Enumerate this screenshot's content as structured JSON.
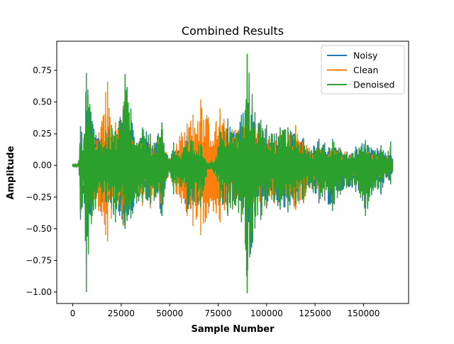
{
  "chart_data": {
    "type": "line",
    "title": "Combined Results",
    "xlabel": "Sample Number",
    "ylabel": "Amplitude",
    "xlim": [
      -8250,
      173250
    ],
    "ylim": [
      -1.09,
      0.98
    ],
    "xticks": [
      0,
      25000,
      50000,
      75000,
      100000,
      125000,
      150000
    ],
    "xtick_labels": [
      "0",
      "25000",
      "50000",
      "75000",
      "100000",
      "125000",
      "150000"
    ],
    "yticks": [
      -1.0,
      -0.75,
      -0.5,
      -0.25,
      0.0,
      0.25,
      0.5,
      0.75
    ],
    "ytick_labels": [
      "−1.00",
      "−0.75",
      "−0.50",
      "−0.25",
      "0.00",
      "0.25",
      "0.50",
      "0.75"
    ],
    "grid": false,
    "legend_position": "top-right",
    "series": [
      {
        "name": "Noisy",
        "color": "#1f77b4",
        "envelope_x": [
          0,
          3000,
          4000,
          6000,
          7000,
          10000,
          15000,
          17000,
          20000,
          22000,
          26000,
          27000,
          28000,
          30000,
          33000,
          36000,
          40000,
          42000,
          46000,
          47000,
          50000,
          52000,
          56000,
          59000,
          62000,
          66000,
          70000,
          74000,
          76000,
          80000,
          84000,
          87000,
          89000,
          90000,
          94000,
          97000,
          100000,
          104000,
          107000,
          111000,
          115000,
          119000,
          122000,
          127000,
          130000,
          134000,
          138000,
          144000,
          146000,
          151000,
          155000,
          159000,
          162000,
          164000,
          165000
        ],
        "envelope_top": [
          0.01,
          0.01,
          0.31,
          0.25,
          0.73,
          0.35,
          0.22,
          0.28,
          0.32,
          0.28,
          0.45,
          0.72,
          0.62,
          0.45,
          0.18,
          0.3,
          0.25,
          0.18,
          0.34,
          0.18,
          0.06,
          0.18,
          0.1,
          0.24,
          0.2,
          0.18,
          0.03,
          0.08,
          0.28,
          0.37,
          0.25,
          0.4,
          0.44,
          0.88,
          0.42,
          0.36,
          0.32,
          0.25,
          0.3,
          0.3,
          0.25,
          0.22,
          0.12,
          0.21,
          0.18,
          0.21,
          0.14,
          0.1,
          0.15,
          0.2,
          0.12,
          0.16,
          0.08,
          0.19,
          0.05
        ],
        "envelope_bottom": [
          -0.01,
          -0.01,
          -0.43,
          -0.3,
          -1.0,
          -0.4,
          -0.3,
          -0.3,
          -0.35,
          -0.45,
          -0.47,
          -0.5,
          -0.44,
          -0.42,
          -0.3,
          -0.3,
          -0.32,
          -0.28,
          -0.4,
          -0.25,
          -0.06,
          -0.23,
          -0.18,
          -0.38,
          -0.32,
          -0.34,
          -0.04,
          -0.1,
          -0.3,
          -0.4,
          -0.32,
          -0.45,
          -0.62,
          -1.0,
          -0.5,
          -0.43,
          -0.34,
          -0.3,
          -0.35,
          -0.37,
          -0.32,
          -0.3,
          -0.18,
          -0.3,
          -0.28,
          -0.36,
          -0.23,
          -0.17,
          -0.21,
          -0.4,
          -0.2,
          -0.23,
          -0.1,
          -0.15,
          -0.05
        ]
      },
      {
        "name": "Clean",
        "color": "#ff7f0e",
        "envelope_x": [
          0,
          3000,
          4000,
          6000,
          7000,
          10000,
          15000,
          17000,
          18000,
          20000,
          22000,
          26000,
          27000,
          28000,
          30000,
          33000,
          36000,
          40000,
          42000,
          46000,
          47000,
          50000,
          52000,
          56000,
          59000,
          62000,
          66000,
          70000,
          74000,
          76000,
          80000,
          84000,
          87000,
          89000,
          90000,
          94000,
          97000,
          100000,
          104000,
          107000,
          111000,
          115000,
          119000,
          122000,
          127000,
          130000,
          134000,
          138000,
          144000,
          146000,
          151000,
          155000,
          159000,
          162000,
          164000,
          165000
        ],
        "envelope_top": [
          0.01,
          0.01,
          0.1,
          0.15,
          0.2,
          0.25,
          0.35,
          0.58,
          0.66,
          0.28,
          0.34,
          0.47,
          0.3,
          0.32,
          0.28,
          0.12,
          0.25,
          0.22,
          0.15,
          0.28,
          0.16,
          0.05,
          0.16,
          0.26,
          0.33,
          0.4,
          0.52,
          0.38,
          0.35,
          0.45,
          0.3,
          0.28,
          0.32,
          0.44,
          0.2,
          0.3,
          0.28,
          0.22,
          0.25,
          0.26,
          0.27,
          0.32,
          0.22,
          0.14,
          0.15,
          0.12,
          0.14,
          0.14,
          0.08,
          0.1,
          0.12,
          0.1,
          0.1,
          0.07,
          0.06,
          0.03
        ],
        "envelope_bottom": [
          -0.01,
          -0.01,
          -0.12,
          -0.2,
          -0.25,
          -0.3,
          -0.4,
          -0.55,
          -0.6,
          -0.42,
          -0.38,
          -0.48,
          -0.35,
          -0.34,
          -0.3,
          -0.2,
          -0.32,
          -0.34,
          -0.25,
          -0.35,
          -0.22,
          -0.05,
          -0.2,
          -0.3,
          -0.4,
          -0.48,
          -0.55,
          -0.38,
          -0.38,
          -0.45,
          -0.3,
          -0.28,
          -0.35,
          -0.52,
          -0.2,
          -0.33,
          -0.32,
          -0.24,
          -0.3,
          -0.3,
          -0.28,
          -0.35,
          -0.3,
          -0.18,
          -0.2,
          -0.17,
          -0.15,
          -0.16,
          -0.12,
          -0.1,
          -0.15,
          -0.12,
          -0.1,
          -0.08,
          -0.08,
          -0.03
        ]
      },
      {
        "name": "Denoised",
        "color": "#2ca02c",
        "envelope_x": [
          0,
          3000,
          4000,
          6000,
          7000,
          10000,
          15000,
          17000,
          20000,
          22000,
          26000,
          27000,
          28000,
          30000,
          33000,
          36000,
          40000,
          42000,
          46000,
          47000,
          50000,
          52000,
          56000,
          59000,
          62000,
          66000,
          70000,
          74000,
          76000,
          80000,
          84000,
          87000,
          89000,
          90000,
          94000,
          97000,
          100000,
          104000,
          107000,
          111000,
          115000,
          119000,
          122000,
          127000,
          130000,
          134000,
          138000,
          144000,
          146000,
          151000,
          155000,
          159000,
          162000,
          164000,
          165000
        ],
        "envelope_top": [
          0.01,
          0.01,
          0.3,
          0.24,
          0.73,
          0.34,
          0.21,
          0.27,
          0.31,
          0.27,
          0.44,
          0.72,
          0.61,
          0.44,
          0.17,
          0.29,
          0.24,
          0.17,
          0.33,
          0.17,
          0.05,
          0.17,
          0.09,
          0.23,
          0.19,
          0.17,
          0.02,
          0.07,
          0.27,
          0.36,
          0.24,
          0.39,
          0.43,
          0.88,
          0.41,
          0.35,
          0.31,
          0.24,
          0.29,
          0.29,
          0.24,
          0.21,
          0.11,
          0.2,
          0.17,
          0.2,
          0.13,
          0.09,
          0.14,
          0.19,
          0.11,
          0.15,
          0.07,
          0.18,
          0.04
        ],
        "envelope_bottom": [
          -0.01,
          -0.01,
          -0.41,
          -0.29,
          -0.99,
          -0.39,
          -0.29,
          -0.29,
          -0.34,
          -0.44,
          -0.46,
          -0.49,
          -0.43,
          -0.41,
          -0.29,
          -0.29,
          -0.31,
          -0.27,
          -0.39,
          -0.24,
          -0.05,
          -0.22,
          -0.17,
          -0.37,
          -0.31,
          -0.33,
          -0.03,
          -0.09,
          -0.29,
          -0.39,
          -0.31,
          -0.44,
          -0.61,
          -1.01,
          -0.49,
          -0.42,
          -0.33,
          -0.29,
          -0.34,
          -0.36,
          -0.31,
          -0.29,
          -0.17,
          -0.29,
          -0.27,
          -0.35,
          -0.22,
          -0.16,
          -0.2,
          -0.39,
          -0.19,
          -0.22,
          -0.09,
          -0.14,
          -0.04
        ]
      }
    ]
  }
}
